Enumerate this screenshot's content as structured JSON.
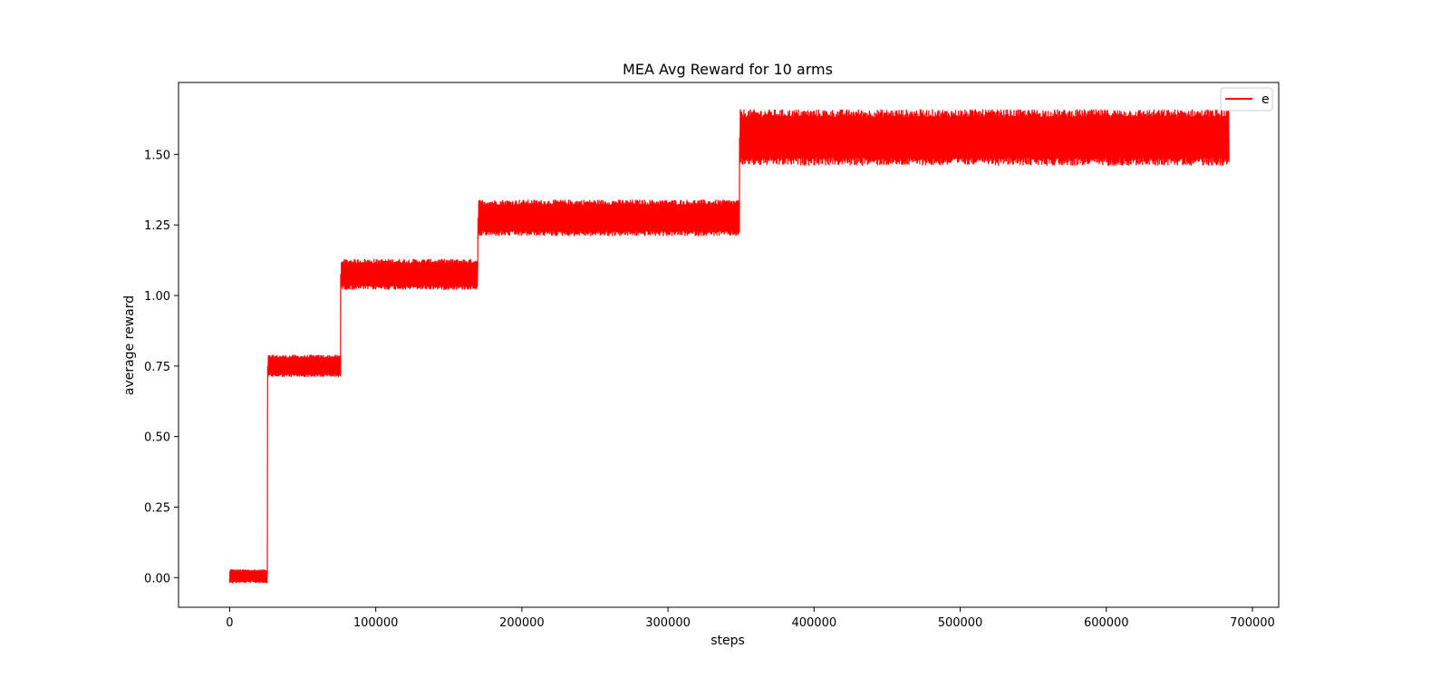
{
  "chart_data": {
    "type": "line",
    "title": "MEA Avg Reward for 10 arms",
    "xlabel": "steps",
    "ylabel": "average reward",
    "xlim": [
      -35000,
      718000
    ],
    "ylim": [
      -0.105,
      1.755
    ],
    "xticks": [
      0,
      100000,
      200000,
      300000,
      400000,
      500000,
      600000,
      700000
    ],
    "xtick_labels": [
      "0",
      "100000",
      "200000",
      "300000",
      "400000",
      "500000",
      "600000",
      "700000"
    ],
    "yticks": [
      0.0,
      0.25,
      0.5,
      0.75,
      1.0,
      1.25,
      1.5
    ],
    "ytick_labels": [
      "0.00",
      "0.25",
      "0.50",
      "0.75",
      "1.00",
      "1.25",
      "1.50"
    ],
    "grid": false,
    "legend": {
      "position": "top-right",
      "entries": [
        "e"
      ]
    },
    "series": [
      {
        "name": "e",
        "color": "#ff0000",
        "segments": [
          {
            "x_start": 0,
            "x_end": 26000,
            "low": -0.02,
            "high": 0.03
          },
          {
            "x_start": 26000,
            "x_end": 76000,
            "low": 0.71,
            "high": 0.79
          },
          {
            "x_start": 76000,
            "x_end": 170000,
            "low": 1.02,
            "high": 1.13
          },
          {
            "x_start": 170000,
            "x_end": 349000,
            "low": 1.21,
            "high": 1.34
          },
          {
            "x_start": 349000,
            "x_end": 684000,
            "low": 1.46,
            "high": 1.66
          }
        ]
      }
    ]
  }
}
